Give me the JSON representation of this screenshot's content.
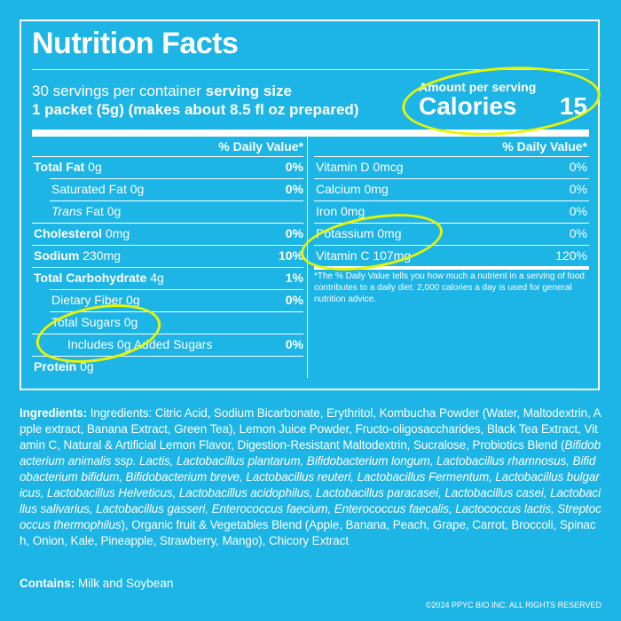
{
  "title": "Nutrition Facts",
  "servings_line": "30 servings per container",
  "serving_size_label": "serving size",
  "serving_size_value": "1 packet (5g) (makes about 8.5 fl oz prepared)",
  "amount_per_serving": "Amount per serving",
  "calories_label": "Calories",
  "calories_value": "15",
  "daily_value_header": "% Daily Value*",
  "left_rows": [
    {
      "name": "Total Fat",
      "amount": "0g",
      "pct": "0%"
    },
    {
      "name": "Saturated Fat",
      "amount": "0g",
      "pct": "0%"
    },
    {
      "name": "Trans",
      "amount": "Fat 0g",
      "pct": ""
    },
    {
      "name": "Cholesterol",
      "amount": "0mg",
      "pct": "0%"
    },
    {
      "name": "Sodium",
      "amount": "230mg",
      "pct": "10%"
    },
    {
      "name": "Total Carbohydrate",
      "amount": "4g",
      "pct": "1%"
    },
    {
      "name": "Dietary Fiber",
      "amount": "0g",
      "pct": "0%"
    },
    {
      "name": "Total Sugars",
      "amount": "0g",
      "pct": ""
    },
    {
      "name": "Includes 0g Added Sugars",
      "amount": "",
      "pct": "0%"
    },
    {
      "name": "Protein",
      "amount": "0g",
      "pct": ""
    }
  ],
  "right_rows": [
    {
      "name": "Vitamin D",
      "amount": "0mcg",
      "pct": "0%"
    },
    {
      "name": "Calcium",
      "amount": "0mg",
      "pct": "0%"
    },
    {
      "name": "Iron",
      "amount": "0mg",
      "pct": "0%"
    },
    {
      "name": "Potassium",
      "amount": "0mg",
      "pct": "0%"
    },
    {
      "name": "Vitamin C",
      "amount": "107mg",
      "pct": "120%"
    }
  ],
  "footnote": "*The % Daily Value tells you how much a nutrient in a serving of food contributes to a daily diet. 2,000 calories a day is used for general nutrition advice.",
  "ingredients_label": "Ingredients:",
  "ingredients_text": "Ingredients: Citric Acid, Sodium Bicarbonate, Erythritol, Kombucha Powder (Water, Maltodextrin, Apple extract, Banana Extract, Green Tea), Lemon Juice Powder, Fructo-oligosaccharides, Black Tea Extract, Vitamin C, Natural & Artificial Lemon Flavor, Digestion-Resistant Maltodextrin, Sucralose, Probiotics Blend (",
  "ingredients_italic": "Bifidobacterium animalis ssp. Lactis, Lactobacillus plantarum, Bifidobacterium longum, Lactobacillus rhamnosus, Bifidobacterium bifidum, Bifidobacterium breve, Lactobacillus reuteri, Lactobacillus Fermentum, Lactobacillus bulgaricus, Lactobacillus Helveticus, Lactobacillus acidophilus, Lactobacillus paracasei, Lactobacillus casei, Lactobacillus salivarius, Lactobacillus gasseri, Enterococcus faecium, Enterococcus faecalis, Lactococcus lactis, Streptococcus thermophilus",
  "ingredients_tail": "), Organic fruit & Vegetables Blend (Apple, Banana, Peach, Grape, Carrot, Broccoli, Spinach, Onion, Kale, Pineapple, Strawberry, Mango), Chicory Extract",
  "contains_label": "Contains:",
  "contains_text": "Milk and Soybean",
  "copyright": "©2024 PPYC BIO INC. ALL RIGHTS RESERVED",
  "colors": {
    "background": "#1db4e6",
    "text": "#ffffff",
    "highlight": "#e8f500"
  }
}
